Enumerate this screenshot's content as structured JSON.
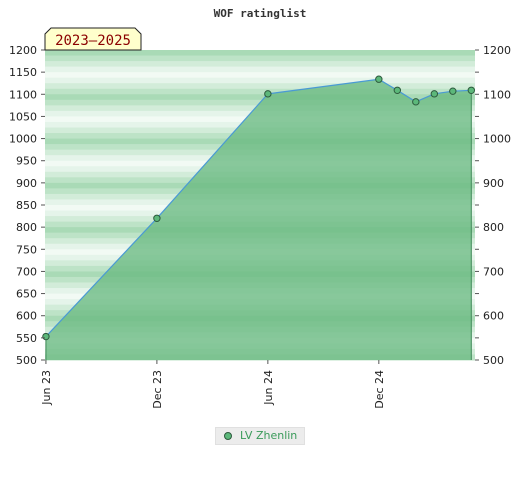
{
  "chart_data": {
    "type": "area",
    "title": "WOF ratinglist",
    "badge": "2023–2025",
    "ylim": [
      500,
      1200
    ],
    "yticks": [
      500,
      550,
      600,
      650,
      700,
      750,
      800,
      850,
      900,
      950,
      1000,
      1050,
      1100,
      1150,
      1200
    ],
    "yticks_right": [
      500,
      600,
      700,
      800,
      900,
      1000,
      1100,
      1200
    ],
    "xticks": [
      {
        "label": "Jun 23",
        "month": 0
      },
      {
        "label": "Dec 23",
        "month": 6
      },
      {
        "label": "Jun 24",
        "month": 12
      },
      {
        "label": "Dec 24",
        "month": 18
      }
    ],
    "x_range_months": [
      -0.05,
      23.2
    ],
    "series": [
      {
        "name": "LV Zhenlin",
        "points": [
          {
            "month": 0,
            "value": 553
          },
          {
            "month": 6,
            "value": 820
          },
          {
            "month": 12,
            "value": 1101
          },
          {
            "month": 18,
            "value": 1134
          },
          {
            "month": 19,
            "value": 1109
          },
          {
            "month": 20,
            "value": 1083
          },
          {
            "month": 21,
            "value": 1101
          },
          {
            "month": 22,
            "value": 1107
          },
          {
            "month": 23,
            "value": 1109
          }
        ]
      }
    ],
    "grid": false,
    "legend_position": "bottom",
    "colors": {
      "area_fill": "#6aba82",
      "line": "#4a9ad4",
      "marker_fill": "#5cb87a",
      "marker_stroke": "#2d5a3d",
      "band_light": "#f1f9f3",
      "band_dark": "#a8d9b5",
      "badge_bg": "#ffffcc",
      "badge_text": "#8b0000",
      "legend_text": "#3a9a5a"
    }
  }
}
